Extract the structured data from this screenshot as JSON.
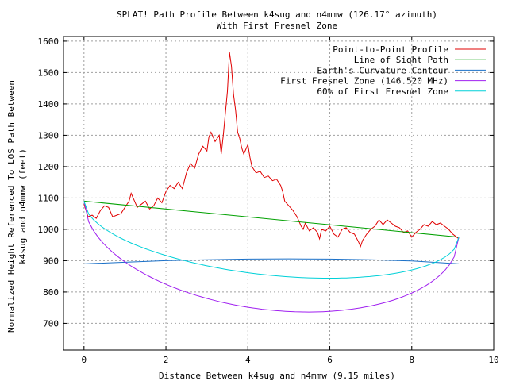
{
  "chart_data": {
    "type": "line",
    "title_line1": "SPLAT! Path Profile Between k4sug and n4mmw (126.17° azimuth)",
    "title_line2": "With First Fresnel Zone",
    "xlabel": "Distance Between k4sug and n4mmw (9.15 miles)",
    "ylabel_line1": "Normalized Height Referenced To LOS Path Between",
    "ylabel_line2": "k4sug and n4mmw (feet)",
    "xlim": [
      -0.5,
      10
    ],
    "ylim": [
      615,
      1615
    ],
    "x_ticks": [
      0,
      2,
      4,
      6,
      8,
      10
    ],
    "y_ticks": [
      700,
      800,
      900,
      1000,
      1100,
      1200,
      1300,
      1400,
      1500,
      1600
    ],
    "grid": true,
    "legend_position": "top-right",
    "series": [
      {
        "name": "Point-to-Point Profile",
        "color": "#e00000",
        "points": [
          [
            0,
            1080
          ],
          [
            0.1,
            1040
          ],
          [
            0.2,
            1045
          ],
          [
            0.3,
            1035
          ],
          [
            0.4,
            1060
          ],
          [
            0.5,
            1075
          ],
          [
            0.6,
            1070
          ],
          [
            0.7,
            1040
          ],
          [
            0.8,
            1045
          ],
          [
            0.9,
            1050
          ],
          [
            1.0,
            1070
          ],
          [
            1.1,
            1090
          ],
          [
            1.15,
            1115
          ],
          [
            1.2,
            1100
          ],
          [
            1.3,
            1070
          ],
          [
            1.4,
            1080
          ],
          [
            1.5,
            1090
          ],
          [
            1.6,
            1065
          ],
          [
            1.7,
            1075
          ],
          [
            1.8,
            1100
          ],
          [
            1.9,
            1085
          ],
          [
            2.0,
            1120
          ],
          [
            2.1,
            1140
          ],
          [
            2.2,
            1130
          ],
          [
            2.3,
            1150
          ],
          [
            2.4,
            1130
          ],
          [
            2.5,
            1180
          ],
          [
            2.6,
            1210
          ],
          [
            2.7,
            1195
          ],
          [
            2.8,
            1240
          ],
          [
            2.9,
            1265
          ],
          [
            3.0,
            1250
          ],
          [
            3.05,
            1295
          ],
          [
            3.1,
            1310
          ],
          [
            3.2,
            1280
          ],
          [
            3.3,
            1300
          ],
          [
            3.35,
            1240
          ],
          [
            3.4,
            1300
          ],
          [
            3.5,
            1440
          ],
          [
            3.55,
            1565
          ],
          [
            3.6,
            1520
          ],
          [
            3.65,
            1430
          ],
          [
            3.7,
            1380
          ],
          [
            3.75,
            1310
          ],
          [
            3.8,
            1290
          ],
          [
            3.85,
            1260
          ],
          [
            3.9,
            1240
          ],
          [
            4.0,
            1270
          ],
          [
            4.05,
            1230
          ],
          [
            4.1,
            1200
          ],
          [
            4.2,
            1180
          ],
          [
            4.3,
            1185
          ],
          [
            4.4,
            1165
          ],
          [
            4.5,
            1170
          ],
          [
            4.6,
            1155
          ],
          [
            4.7,
            1160
          ],
          [
            4.8,
            1140
          ],
          [
            4.85,
            1120
          ],
          [
            4.9,
            1090
          ],
          [
            5.0,
            1075
          ],
          [
            5.1,
            1060
          ],
          [
            5.2,
            1040
          ],
          [
            5.3,
            1010
          ],
          [
            5.35,
            1000
          ],
          [
            5.4,
            1020
          ],
          [
            5.5,
            995
          ],
          [
            5.6,
            1005
          ],
          [
            5.7,
            990
          ],
          [
            5.75,
            970
          ],
          [
            5.8,
            1000
          ],
          [
            5.9,
            995
          ],
          [
            6.0,
            1010
          ],
          [
            6.1,
            985
          ],
          [
            6.2,
            975
          ],
          [
            6.3,
            1000
          ],
          [
            6.4,
            1005
          ],
          [
            6.5,
            990
          ],
          [
            6.6,
            985
          ],
          [
            6.7,
            960
          ],
          [
            6.75,
            945
          ],
          [
            6.8,
            965
          ],
          [
            6.9,
            985
          ],
          [
            7.0,
            1000
          ],
          [
            7.1,
            1010
          ],
          [
            7.2,
            1030
          ],
          [
            7.3,
            1015
          ],
          [
            7.4,
            1030
          ],
          [
            7.5,
            1020
          ],
          [
            7.6,
            1010
          ],
          [
            7.7,
            1005
          ],
          [
            7.8,
            990
          ],
          [
            7.9,
            995
          ],
          [
            8.0,
            975
          ],
          [
            8.1,
            990
          ],
          [
            8.2,
            1000
          ],
          [
            8.3,
            1015
          ],
          [
            8.4,
            1010
          ],
          [
            8.5,
            1025
          ],
          [
            8.6,
            1015
          ],
          [
            8.7,
            1020
          ],
          [
            8.8,
            1010
          ],
          [
            8.9,
            1000
          ],
          [
            9.0,
            985
          ],
          [
            9.1,
            975
          ],
          [
            9.15,
            970
          ]
        ]
      },
      {
        "name": "Line of Sight Path",
        "color": "#00a000",
        "points": [
          [
            0,
            1090
          ],
          [
            9.15,
            975
          ]
        ]
      },
      {
        "name": "Earth's Curvature Contour",
        "color": "#1a70c8",
        "points": [
          [
            0,
            890
          ],
          [
            1,
            895
          ],
          [
            2,
            900
          ],
          [
            3,
            903
          ],
          [
            4,
            905
          ],
          [
            5,
            906
          ],
          [
            6,
            905
          ],
          [
            7,
            903
          ],
          [
            8,
            899
          ],
          [
            9.15,
            890
          ]
        ]
      },
      {
        "name": "First Fresnel Zone (146.520 MHz)",
        "color": "#a020f0",
        "lower_edge_min": 742
      },
      {
        "name": "60% of First Fresnel Zone",
        "color": "#00d0d8",
        "lower_edge_min": 853
      }
    ]
  }
}
